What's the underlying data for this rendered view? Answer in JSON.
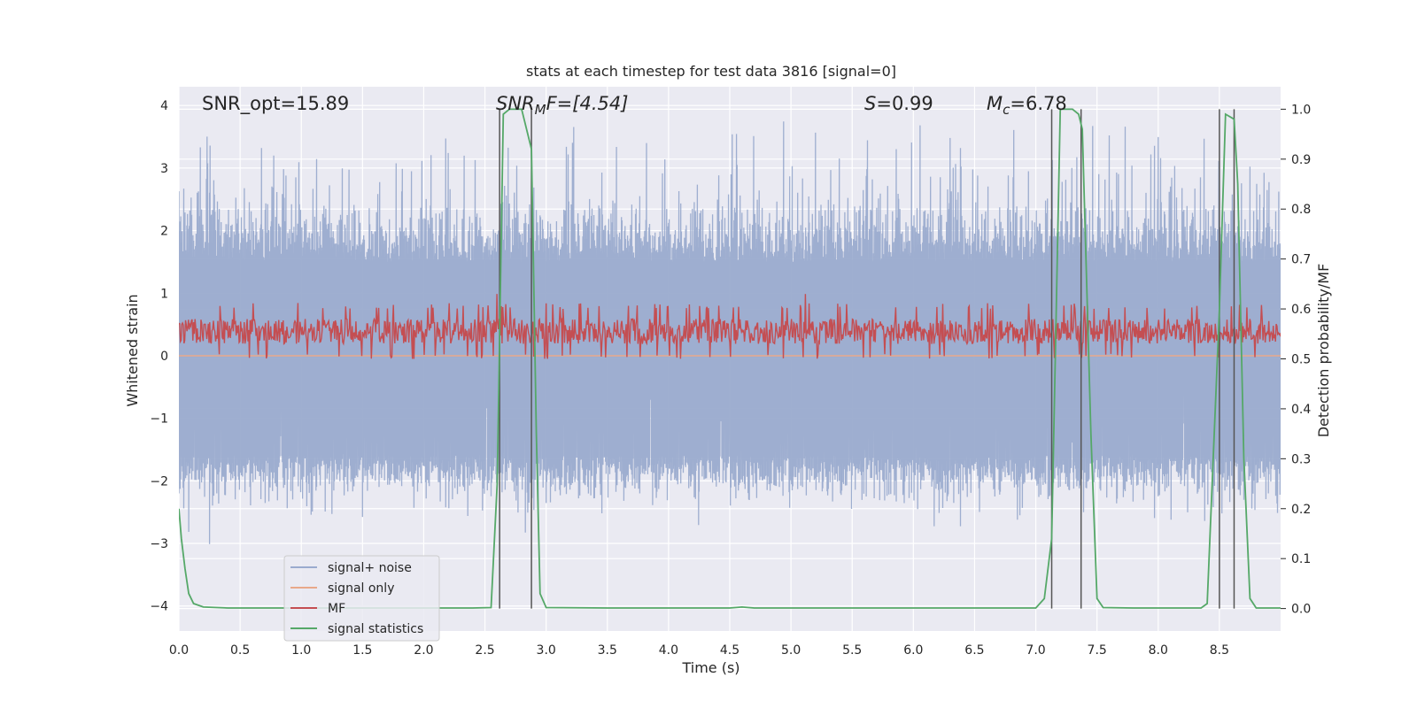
{
  "chart_data": {
    "type": "line",
    "title": "stats at each timestep for test data 3816 [signal=0]",
    "xlabel": "Time (s)",
    "ylabel_left": "Whitened strain",
    "ylabel_right": "Detection probability/MF",
    "xlim": [
      0,
      9
    ],
    "ylim_left": [
      -4.4,
      4.3
    ],
    "ylim_right": [
      -0.045,
      1.045
    ],
    "x_ticks": [
      "0.0",
      "0.5",
      "1.0",
      "1.5",
      "2.0",
      "2.5",
      "3.0",
      "3.5",
      "4.0",
      "4.5",
      "5.0",
      "5.5",
      "6.0",
      "6.5",
      "7.0",
      "7.5",
      "8.0",
      "8.5"
    ],
    "x_tick_values": [
      0,
      0.5,
      1,
      1.5,
      2,
      2.5,
      3,
      3.5,
      4,
      4.5,
      5,
      5.5,
      6,
      6.5,
      7,
      7.5,
      8,
      8.5
    ],
    "y_left_ticks": [
      "4",
      "3",
      "2",
      "1",
      "0",
      "−1",
      "−2",
      "−3",
      "−4"
    ],
    "y_left_tick_values": [
      4,
      3,
      2,
      1,
      0,
      -1,
      -2,
      -3,
      -4
    ],
    "y_right_ticks": [
      "1.0",
      "0.9",
      "0.8",
      "0.7",
      "0.6",
      "0.5",
      "0.4",
      "0.3",
      "0.2",
      "0.1",
      "0.0"
    ],
    "y_right_tick_values": [
      1.0,
      0.9,
      0.8,
      0.7,
      0.6,
      0.5,
      0.4,
      0.3,
      0.2,
      0.1,
      0.0
    ],
    "grid": true,
    "legend_placement": "lower-left",
    "annotations": {
      "snr_opt": "SNR_opt=15.89",
      "snr_mf_main": "SNR",
      "snr_mf_sub": "M",
      "snr_mf_rest": "F=[4.54]",
      "s_main": "S",
      "s_rest": "=0.99",
      "mc_main": "M",
      "mc_sub": "c",
      "mc_rest": "=6.78"
    },
    "series": [
      {
        "name": "signal+ noise",
        "color": "#9aabce",
        "axis": "left",
        "envelope": {
          "upper_typical": 1.5,
          "lower_typical": -1.6,
          "upper_peak": 3.1,
          "lower_peak": -3.9
        }
      },
      {
        "name": "signal only",
        "color": "#e8a88a",
        "axis": "left",
        "values_constant": 0
      },
      {
        "name": "MF",
        "color": "#c44e52",
        "axis": "right",
        "band": [
          0.5,
          0.6
        ],
        "peaks": [
          [
            2.6,
            0.63
          ],
          [
            5.12,
            0.63
          ]
        ]
      },
      {
        "name": "signal statistics",
        "color": "#55a868",
        "axis": "right",
        "x": [
          0.0,
          0.02,
          0.05,
          0.08,
          0.12,
          0.2,
          0.4,
          1.0,
          2.0,
          2.4,
          2.55,
          2.6,
          2.65,
          2.7,
          2.8,
          2.88,
          2.92,
          2.95,
          3.0,
          3.5,
          4.0,
          4.5,
          4.6,
          4.7,
          5.0,
          6.0,
          7.0,
          7.07,
          7.13,
          7.2,
          7.3,
          7.35,
          7.38,
          7.45,
          7.5,
          7.55,
          7.8,
          8.0,
          8.35,
          8.4,
          8.5,
          8.55,
          8.62,
          8.65,
          8.7,
          8.75,
          8.8,
          8.9,
          9.0
        ],
        "y": [
          0.2,
          0.14,
          0.08,
          0.03,
          0.01,
          0.003,
          0.001,
          0.001,
          0.001,
          0.001,
          0.002,
          0.25,
          0.99,
          1.0,
          1.0,
          0.92,
          0.35,
          0.03,
          0.002,
          0.001,
          0.001,
          0.001,
          0.003,
          0.001,
          0.001,
          0.001,
          0.001,
          0.02,
          0.14,
          1.0,
          1.0,
          0.99,
          0.96,
          0.35,
          0.02,
          0.002,
          0.001,
          0.001,
          0.001,
          0.01,
          0.6,
          0.99,
          0.98,
          0.85,
          0.3,
          0.02,
          0.001,
          0.001,
          0.001
        ]
      },
      {
        "name": "vertical markers",
        "color": "#555555",
        "axis": "right",
        "x": [
          2.62,
          2.88,
          7.13,
          7.37,
          8.5,
          8.62
        ],
        "y_range": [
          0,
          1.0
        ]
      }
    ]
  }
}
